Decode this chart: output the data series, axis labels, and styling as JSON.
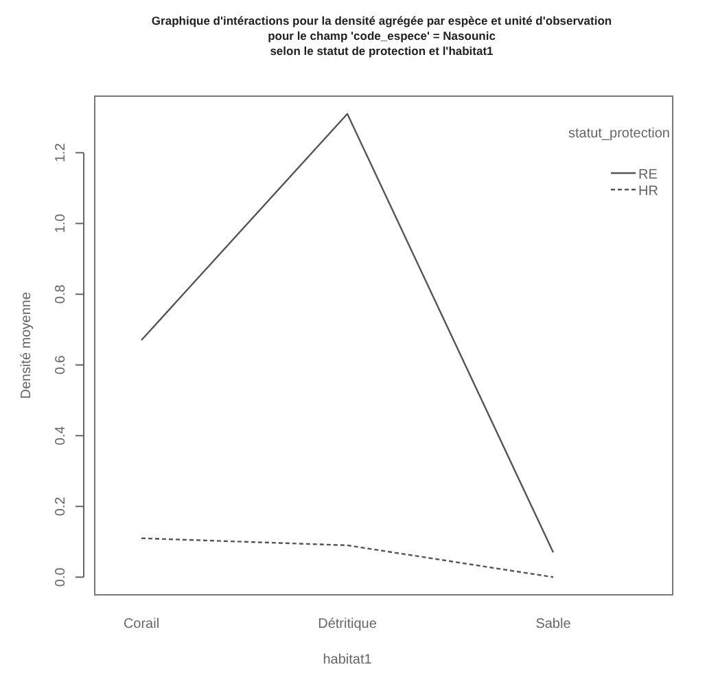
{
  "chart_data": {
    "type": "line",
    "title": "Graphique d'intéractions pour la densité agrégée par espèce et unité d'observation\npour le champ 'code_espece' = Nasounic\nselon le statut de protection et l'habitat1",
    "xlabel": "habitat1",
    "ylabel": "Densité moyenne",
    "legend_title": "statut_protection",
    "categories": [
      "Corail",
      "Détritique",
      "Sable"
    ],
    "series": [
      {
        "name": "RE",
        "color": "#555555",
        "line_style": "solid",
        "values": [
          0.67,
          1.31,
          0.07
        ]
      },
      {
        "name": "HR",
        "color": "#555555",
        "line_style": "dashed",
        "values": [
          0.11,
          0.09,
          0.0
        ]
      }
    ],
    "ylim": [
      -0.05,
      1.36
    ],
    "yticks": [
      {
        "value": 0,
        "label": "0.0"
      },
      {
        "value": 0.2,
        "label": "0.2"
      },
      {
        "value": 0.4,
        "label": "0.4"
      },
      {
        "value": 0.6,
        "label": "0.6"
      },
      {
        "value": 0.8,
        "label": "0.8"
      },
      {
        "value": 1,
        "label": "1.0"
      },
      {
        "value": 1.2,
        "label": "1.2"
      }
    ],
    "legend": "top right",
    "grid": false
  }
}
